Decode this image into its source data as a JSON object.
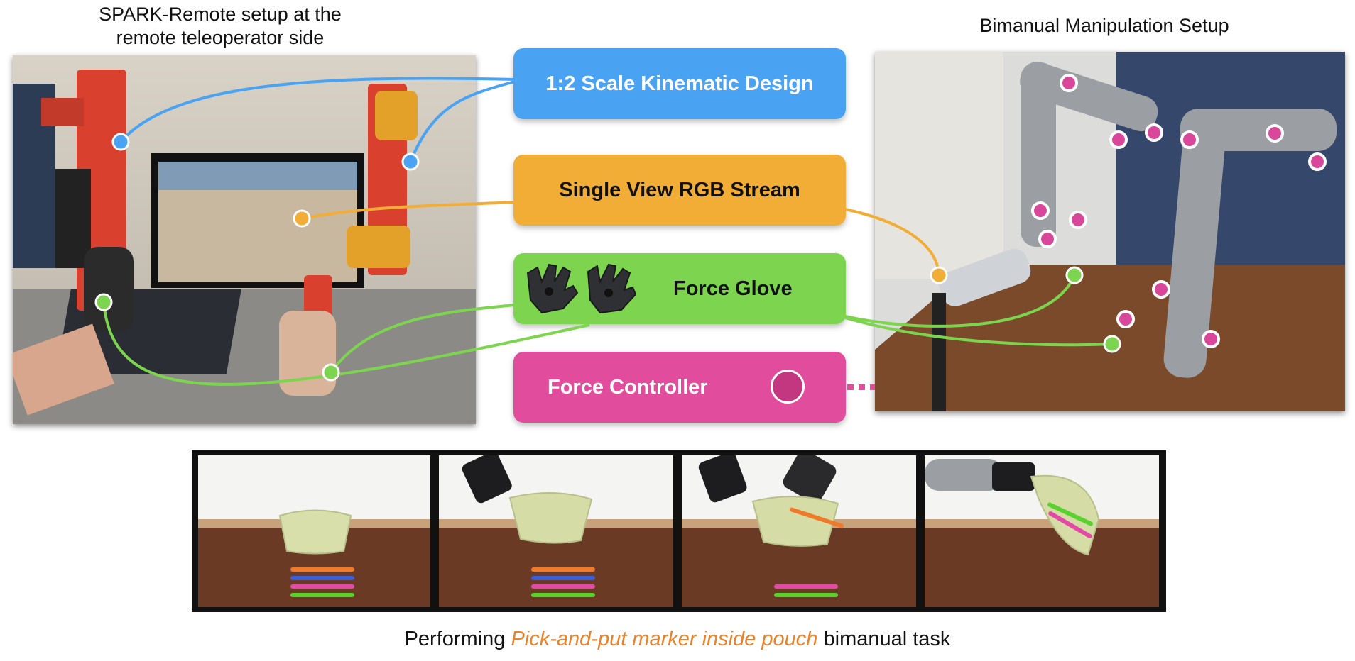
{
  "titles": {
    "left_line1": "SPARK-Remote setup at the",
    "left_line2": "remote teleoperator side",
    "right": "Bimanual Manipulation Setup"
  },
  "boxes": {
    "kinematic": "1:2 Scale Kinematic Design",
    "rgb": "Single View RGB Stream",
    "glove": "Force Glove",
    "controller": "Force Controller"
  },
  "caption": {
    "prefix": "Performing ",
    "highlight": "Pick-and-put marker inside pouch",
    "suffix": " bimanual task"
  },
  "colors": {
    "blue": "#4aa3f2",
    "orange": "#f2ad36",
    "green": "#7dd44f",
    "pink": "#e14c9c",
    "caption_highlight": "#e8822b"
  }
}
